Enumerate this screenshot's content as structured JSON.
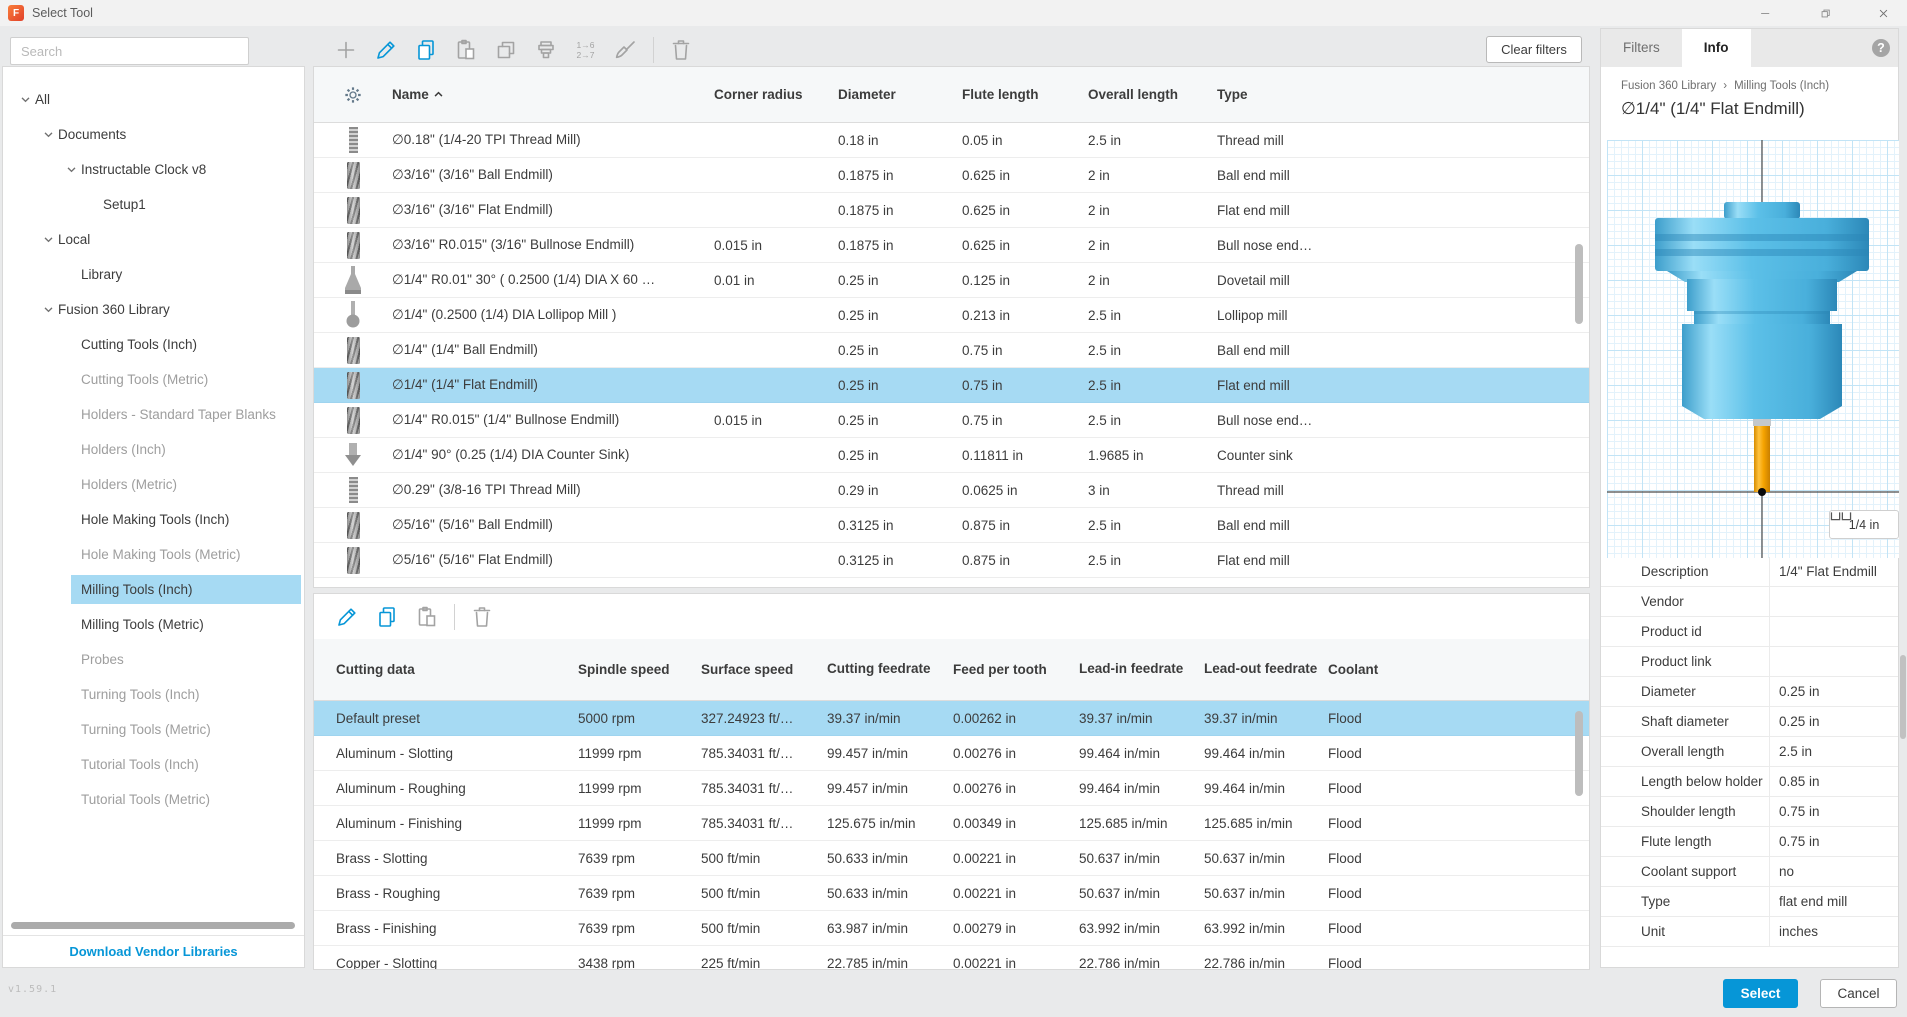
{
  "window": {
    "title": "Select Tool",
    "logo": "F",
    "controls": [
      "minimize",
      "restore",
      "close"
    ],
    "version": "v1.59.1"
  },
  "colors": {
    "accent": "#0696d7",
    "selection": "#a6daf3",
    "link": "#0696d7",
    "holder_blue": "#5cc0e8",
    "shank_orange": "#f5a623"
  },
  "sidebar": {
    "search_placeholder": "Search",
    "download_link": "Download Vendor Libraries",
    "tree": [
      {
        "label": "All",
        "depth": 0,
        "chevron": true,
        "tone": "dark"
      },
      {
        "label": "Documents",
        "depth": 1,
        "chevron": true,
        "tone": "dark"
      },
      {
        "label": "Instructable Clock v8",
        "depth": 2,
        "chevron": true,
        "tone": "dark"
      },
      {
        "label": "Setup1",
        "depth": 3,
        "chevron": false,
        "tone": "dark"
      },
      {
        "label": "Local",
        "depth": 1,
        "chevron": true,
        "tone": "dark"
      },
      {
        "label": "Library",
        "depth": 2,
        "chevron": false,
        "tone": "dark"
      },
      {
        "label": "Fusion 360 Library",
        "depth": 1,
        "chevron": true,
        "tone": "dark"
      },
      {
        "label": "Cutting Tools (Inch)",
        "depth": 2,
        "chevron": false,
        "tone": "dark"
      },
      {
        "label": "Cutting Tools (Metric)",
        "depth": 2,
        "chevron": false,
        "tone": "dim"
      },
      {
        "label": "Holders - Standard Taper Blanks",
        "depth": 2,
        "chevron": false,
        "tone": "dim"
      },
      {
        "label": "Holders (Inch)",
        "depth": 2,
        "chevron": false,
        "tone": "dim"
      },
      {
        "label": "Holders (Metric)",
        "depth": 2,
        "chevron": false,
        "tone": "dim"
      },
      {
        "label": "Hole Making Tools (Inch)",
        "depth": 2,
        "chevron": false,
        "tone": "dark"
      },
      {
        "label": "Hole Making Tools (Metric)",
        "depth": 2,
        "chevron": false,
        "tone": "dim"
      },
      {
        "label": "Milling Tools (Inch)",
        "depth": 2,
        "chevron": false,
        "tone": "dark",
        "selected": true
      },
      {
        "label": "Milling Tools (Metric)",
        "depth": 2,
        "chevron": false,
        "tone": "dark"
      },
      {
        "label": "Probes",
        "depth": 2,
        "chevron": false,
        "tone": "dim"
      },
      {
        "label": "Turning Tools (Inch)",
        "depth": 2,
        "chevron": false,
        "tone": "dim"
      },
      {
        "label": "Turning Tools (Metric)",
        "depth": 2,
        "chevron": false,
        "tone": "dim"
      },
      {
        "label": "Tutorial Tools (Inch)",
        "depth": 2,
        "chevron": false,
        "tone": "dim"
      },
      {
        "label": "Tutorial Tools (Metric)",
        "depth": 2,
        "chevron": false,
        "tone": "dim"
      }
    ]
  },
  "toolbar_top": {
    "clear_filters_label": "Clear filters",
    "icons": [
      {
        "name": "add",
        "color": "gray"
      },
      {
        "name": "edit",
        "color": "blue"
      },
      {
        "name": "copy",
        "color": "blue"
      },
      {
        "name": "paste",
        "color": "gray"
      },
      {
        "name": "duplicate",
        "color": "gray"
      },
      {
        "name": "tool-holder",
        "color": "gray"
      },
      {
        "name": "renumber",
        "color": "gray"
      },
      {
        "name": "clean",
        "color": "gray"
      },
      {
        "name": "divider"
      },
      {
        "name": "delete",
        "color": "gray"
      }
    ]
  },
  "toolbar_presets": {
    "icons": [
      {
        "name": "edit",
        "color": "blue"
      },
      {
        "name": "copy",
        "color": "blue"
      },
      {
        "name": "paste",
        "color": "gray"
      },
      {
        "name": "divider"
      },
      {
        "name": "delete",
        "color": "gray"
      }
    ]
  },
  "tool_table": {
    "headers": [
      "Name",
      "Corner radius",
      "Diameter",
      "Flute length",
      "Overall length",
      "Type"
    ],
    "sort": {
      "column": "Name",
      "direction": "asc"
    },
    "rows": [
      {
        "icon": "thread-mill",
        "name": "∅0.18\" (1/4-20 TPI Thread Mill)",
        "corner": "",
        "diameter": "0.18 in",
        "flute": "0.05 in",
        "overall": "2.5 in",
        "type": "Thread mill"
      },
      {
        "icon": "ball-endmill",
        "name": "∅3/16\" (3/16\" Ball Endmill)",
        "corner": "",
        "diameter": "0.1875 in",
        "flute": "0.625 in",
        "overall": "2 in",
        "type": "Ball end mill"
      },
      {
        "icon": "flat-endmill",
        "name": "∅3/16\" (3/16\" Flat Endmill)",
        "corner": "",
        "diameter": "0.1875 in",
        "flute": "0.625 in",
        "overall": "2 in",
        "type": "Flat end mill"
      },
      {
        "icon": "bullnose-endmill",
        "name": "∅3/16\" R0.015\" (3/16\" Bullnose Endmill)",
        "corner": "0.015 in",
        "diameter": "0.1875 in",
        "flute": "0.625 in",
        "overall": "2 in",
        "type": "Bull nose end…"
      },
      {
        "icon": "dovetail-mill",
        "name": "∅1/4\" R0.01\" 30° ( 0.2500 (1/4) DIA X 60 …",
        "corner": "0.01 in",
        "diameter": "0.25 in",
        "flute": "0.125 in",
        "overall": "2 in",
        "type": "Dovetail mill"
      },
      {
        "icon": "lollipop-mill",
        "name": "∅1/4\" (0.2500 (1/4) DIA Lollipop Mill )",
        "corner": "",
        "diameter": "0.25 in",
        "flute": "0.213 in",
        "overall": "2.5 in",
        "type": "Lollipop mill"
      },
      {
        "icon": "ball-endmill",
        "name": "∅1/4\" (1/4\" Ball Endmill)",
        "corner": "",
        "diameter": "0.25 in",
        "flute": "0.75 in",
        "overall": "2.5 in",
        "type": "Ball end mill"
      },
      {
        "icon": "flat-endmill",
        "name": "∅1/4\" (1/4\" Flat Endmill)",
        "corner": "",
        "diameter": "0.25 in",
        "flute": "0.75 in",
        "overall": "2.5 in",
        "type": "Flat end mill",
        "selected": true
      },
      {
        "icon": "bullnose-endmill",
        "name": "∅1/4\" R0.015\" (1/4\" Bullnose Endmill)",
        "corner": "0.015 in",
        "diameter": "0.25 in",
        "flute": "0.75 in",
        "overall": "2.5 in",
        "type": "Bull nose end…"
      },
      {
        "icon": "counter-sink",
        "name": "∅1/4\" 90° (0.25 (1/4) DIA Counter Sink)",
        "corner": "",
        "diameter": "0.25 in",
        "flute": "0.11811 in",
        "overall": "1.9685 in",
        "type": "Counter sink"
      },
      {
        "icon": "thread-mill",
        "name": "∅0.29\" (3/8-16 TPI Thread Mill)",
        "corner": "",
        "diameter": "0.29 in",
        "flute": "0.0625 in",
        "overall": "3 in",
        "type": "Thread mill"
      },
      {
        "icon": "ball-endmill",
        "name": "∅5/16\" (5/16\" Ball Endmill)",
        "corner": "",
        "diameter": "0.3125 in",
        "flute": "0.875 in",
        "overall": "2.5 in",
        "type": "Ball end mill"
      },
      {
        "icon": "flat-endmill",
        "name": "∅5/16\" (5/16\" Flat Endmill)",
        "corner": "",
        "diameter": "0.3125 in",
        "flute": "0.875 in",
        "overall": "2.5 in",
        "type": "Flat end mill"
      }
    ]
  },
  "presets_table": {
    "headers": [
      "Cutting data",
      "Spindle speed",
      "Surface speed",
      "Cutting feedrate",
      "Feed per tooth",
      "Lead-in feedrate",
      "Lead-out feedrate",
      "Coolant"
    ],
    "rows": [
      {
        "values": [
          "Default preset",
          "5000 rpm",
          "327.24923 ft/…",
          "39.37 in/min",
          "0.00262 in",
          "39.37 in/min",
          "39.37 in/min",
          "Flood"
        ],
        "selected": true
      },
      {
        "values": [
          "Aluminum - Slotting",
          "11999 rpm",
          "785.34031 ft/…",
          "99.457 in/min",
          "0.00276 in",
          "99.464 in/min",
          "99.464 in/min",
          "Flood"
        ]
      },
      {
        "values": [
          "Aluminum - Roughing",
          "11999 rpm",
          "785.34031 ft/…",
          "99.457 in/min",
          "0.00276 in",
          "99.464 in/min",
          "99.464 in/min",
          "Flood"
        ]
      },
      {
        "values": [
          "Aluminum - Finishing",
          "11999 rpm",
          "785.34031 ft/…",
          "125.675 in/min",
          "0.00349 in",
          "125.685 in/min",
          "125.685 in/min",
          "Flood"
        ]
      },
      {
        "values": [
          "Brass - Slotting",
          "7639 rpm",
          "500 ft/min",
          "50.633 in/min",
          "0.00221 in",
          "50.637 in/min",
          "50.637 in/min",
          "Flood"
        ]
      },
      {
        "values": [
          "Brass - Roughing",
          "7639 rpm",
          "500 ft/min",
          "50.633 in/min",
          "0.00221 in",
          "50.637 in/min",
          "50.637 in/min",
          "Flood"
        ]
      },
      {
        "values": [
          "Brass - Finishing",
          "7639 rpm",
          "500 ft/min",
          "63.987 in/min",
          "0.00279 in",
          "63.992 in/min",
          "63.992 in/min",
          "Flood"
        ]
      },
      {
        "values": [
          "Copper - Slotting",
          "3438 rpm",
          "225 ft/min",
          "22.785 in/min",
          "0.00221 in",
          "22.786 in/min",
          "22.786 in/min",
          "Flood"
        ]
      }
    ]
  },
  "info_panel": {
    "tabs": [
      "Filters",
      "Info"
    ],
    "active_tab": "Info",
    "breadcrumb": [
      "Fusion 360 Library",
      "Milling Tools (Inch)"
    ],
    "breadcrumb_separator": "›",
    "title": "∅1/4\" (1/4\" Flat Endmill)",
    "scale_label": "1/4 in",
    "properties": [
      {
        "label": "Description",
        "value": "1/4\" Flat Endmill"
      },
      {
        "label": "Vendor",
        "value": ""
      },
      {
        "label": "Product id",
        "value": ""
      },
      {
        "label": "Product link",
        "value": ""
      },
      {
        "label": "Diameter",
        "value": "0.25 in"
      },
      {
        "label": "Shaft diameter",
        "value": "0.25 in"
      },
      {
        "label": "Overall length",
        "value": "2.5 in"
      },
      {
        "label": "Length below holder",
        "value": "0.85 in"
      },
      {
        "label": "Shoulder length",
        "value": "0.75 in"
      },
      {
        "label": "Flute length",
        "value": "0.75 in"
      },
      {
        "label": "Coolant support",
        "value": "no"
      },
      {
        "label": "Type",
        "value": "flat end mill"
      },
      {
        "label": "Unit",
        "value": "inches"
      }
    ],
    "select_label": "Select",
    "cancel_label": "Cancel"
  }
}
